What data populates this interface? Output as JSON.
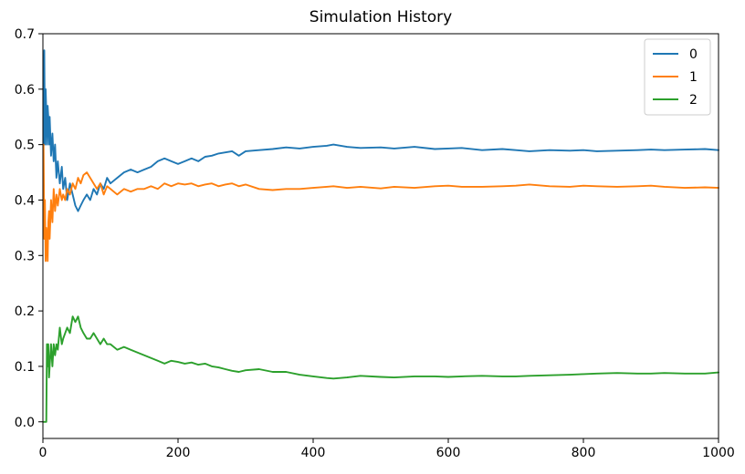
{
  "chart_data": {
    "type": "line",
    "title": "Simulation History",
    "xlabel": "",
    "ylabel": "",
    "xlim": [
      0,
      1000
    ],
    "ylim": [
      -0.03,
      0.7
    ],
    "xticks": [
      0,
      200,
      400,
      600,
      800,
      1000
    ],
    "xtick_labels": [
      "0",
      "200",
      "400",
      "600",
      "800",
      "1000"
    ],
    "yticks": [
      0.0,
      0.1,
      0.2,
      0.3,
      0.4,
      0.5,
      0.6,
      0.7
    ],
    "ytick_labels": [
      "0.0",
      "0.1",
      "0.2",
      "0.3",
      "0.4",
      "0.5",
      "0.6",
      "0.7"
    ],
    "grid": false,
    "legend_position": "top-right",
    "series": [
      {
        "name": "0",
        "color": "#1f77b4",
        "x": [
          1,
          2,
          3,
          4,
          5,
          6,
          7,
          8,
          9,
          10,
          12,
          14,
          16,
          18,
          20,
          22,
          25,
          28,
          30,
          33,
          36,
          40,
          44,
          48,
          52,
          56,
          60,
          65,
          70,
          75,
          80,
          85,
          90,
          95,
          100,
          110,
          120,
          130,
          140,
          150,
          160,
          170,
          180,
          190,
          200,
          210,
          220,
          230,
          240,
          250,
          260,
          270,
          280,
          290,
          300,
          320,
          340,
          360,
          380,
          400,
          420,
          430,
          450,
          470,
          500,
          520,
          550,
          580,
          600,
          620,
          650,
          680,
          700,
          720,
          750,
          780,
          800,
          820,
          850,
          880,
          900,
          920,
          950,
          980,
          1000
        ],
        "values": [
          0.5,
          0.67,
          0.5,
          0.6,
          0.56,
          0.5,
          0.57,
          0.55,
          0.5,
          0.55,
          0.48,
          0.52,
          0.47,
          0.5,
          0.44,
          0.47,
          0.43,
          0.46,
          0.42,
          0.44,
          0.4,
          0.43,
          0.41,
          0.39,
          0.38,
          0.39,
          0.4,
          0.41,
          0.4,
          0.42,
          0.41,
          0.43,
          0.42,
          0.44,
          0.43,
          0.44,
          0.45,
          0.455,
          0.45,
          0.455,
          0.46,
          0.47,
          0.475,
          0.47,
          0.465,
          0.47,
          0.475,
          0.47,
          0.478,
          0.48,
          0.484,
          0.486,
          0.488,
          0.48,
          0.488,
          0.49,
          0.492,
          0.495,
          0.493,
          0.496,
          0.498,
          0.5,
          0.496,
          0.494,
          0.495,
          0.493,
          0.496,
          0.492,
          0.493,
          0.494,
          0.49,
          0.492,
          0.49,
          0.488,
          0.49,
          0.489,
          0.49,
          0.488,
          0.489,
          0.49,
          0.491,
          0.49,
          0.491,
          0.492,
          0.49
        ]
      },
      {
        "name": "1",
        "color": "#ff7f0e",
        "x": [
          1,
          2,
          3,
          4,
          5,
          6,
          7,
          8,
          9,
          10,
          12,
          14,
          16,
          18,
          20,
          22,
          25,
          28,
          30,
          33,
          36,
          40,
          44,
          48,
          52,
          56,
          60,
          65,
          70,
          75,
          80,
          85,
          90,
          95,
          100,
          110,
          120,
          130,
          140,
          150,
          160,
          170,
          180,
          190,
          200,
          210,
          220,
          230,
          240,
          250,
          260,
          270,
          280,
          290,
          300,
          320,
          340,
          360,
          380,
          400,
          420,
          430,
          450,
          470,
          500,
          520,
          550,
          580,
          600,
          620,
          650,
          680,
          700,
          720,
          750,
          780,
          800,
          820,
          850,
          880,
          900,
          920,
          950,
          980,
          1000
        ],
        "values": [
          0.5,
          0.33,
          0.4,
          0.29,
          0.35,
          0.33,
          0.29,
          0.36,
          0.38,
          0.33,
          0.4,
          0.36,
          0.42,
          0.38,
          0.41,
          0.39,
          0.42,
          0.4,
          0.41,
          0.4,
          0.42,
          0.41,
          0.43,
          0.42,
          0.44,
          0.43,
          0.445,
          0.45,
          0.44,
          0.43,
          0.42,
          0.43,
          0.41,
          0.425,
          0.42,
          0.41,
          0.42,
          0.415,
          0.42,
          0.42,
          0.425,
          0.42,
          0.43,
          0.425,
          0.43,
          0.428,
          0.43,
          0.425,
          0.428,
          0.43,
          0.425,
          0.428,
          0.43,
          0.425,
          0.428,
          0.42,
          0.418,
          0.42,
          0.42,
          0.422,
          0.424,
          0.425,
          0.422,
          0.424,
          0.421,
          0.424,
          0.422,
          0.425,
          0.426,
          0.424,
          0.424,
          0.425,
          0.426,
          0.428,
          0.425,
          0.424,
          0.426,
          0.425,
          0.424,
          0.425,
          0.426,
          0.424,
          0.422,
          0.423,
          0.422
        ]
      },
      {
        "name": "2",
        "color": "#2ca02c",
        "x": [
          1,
          2,
          3,
          4,
          5,
          6,
          7,
          8,
          9,
          10,
          12,
          14,
          16,
          18,
          20,
          22,
          25,
          28,
          30,
          33,
          36,
          40,
          44,
          48,
          52,
          56,
          60,
          65,
          70,
          75,
          80,
          85,
          90,
          95,
          100,
          110,
          120,
          130,
          140,
          150,
          160,
          170,
          180,
          190,
          200,
          210,
          220,
          230,
          240,
          250,
          260,
          270,
          280,
          290,
          300,
          320,
          340,
          360,
          380,
          400,
          420,
          430,
          450,
          470,
          500,
          520,
          550,
          580,
          600,
          620,
          650,
          680,
          700,
          720,
          750,
          780,
          800,
          820,
          850,
          880,
          900,
          920,
          950,
          980,
          1000
        ],
        "values": [
          0.0,
          0.0,
          0.0,
          0.0,
          0.0,
          0.14,
          0.1,
          0.14,
          0.08,
          0.1,
          0.14,
          0.1,
          0.14,
          0.12,
          0.14,
          0.13,
          0.17,
          0.14,
          0.15,
          0.16,
          0.17,
          0.16,
          0.19,
          0.18,
          0.19,
          0.17,
          0.16,
          0.15,
          0.15,
          0.16,
          0.15,
          0.14,
          0.15,
          0.14,
          0.14,
          0.13,
          0.135,
          0.13,
          0.125,
          0.12,
          0.115,
          0.11,
          0.105,
          0.11,
          0.108,
          0.105,
          0.107,
          0.103,
          0.105,
          0.1,
          0.098,
          0.095,
          0.092,
          0.09,
          0.093,
          0.095,
          0.09,
          0.09,
          0.085,
          0.082,
          0.079,
          0.078,
          0.08,
          0.083,
          0.081,
          0.08,
          0.082,
          0.082,
          0.081,
          0.082,
          0.083,
          0.082,
          0.082,
          0.083,
          0.084,
          0.085,
          0.086,
          0.087,
          0.088,
          0.087,
          0.087,
          0.088,
          0.087,
          0.087,
          0.089
        ]
      }
    ]
  }
}
